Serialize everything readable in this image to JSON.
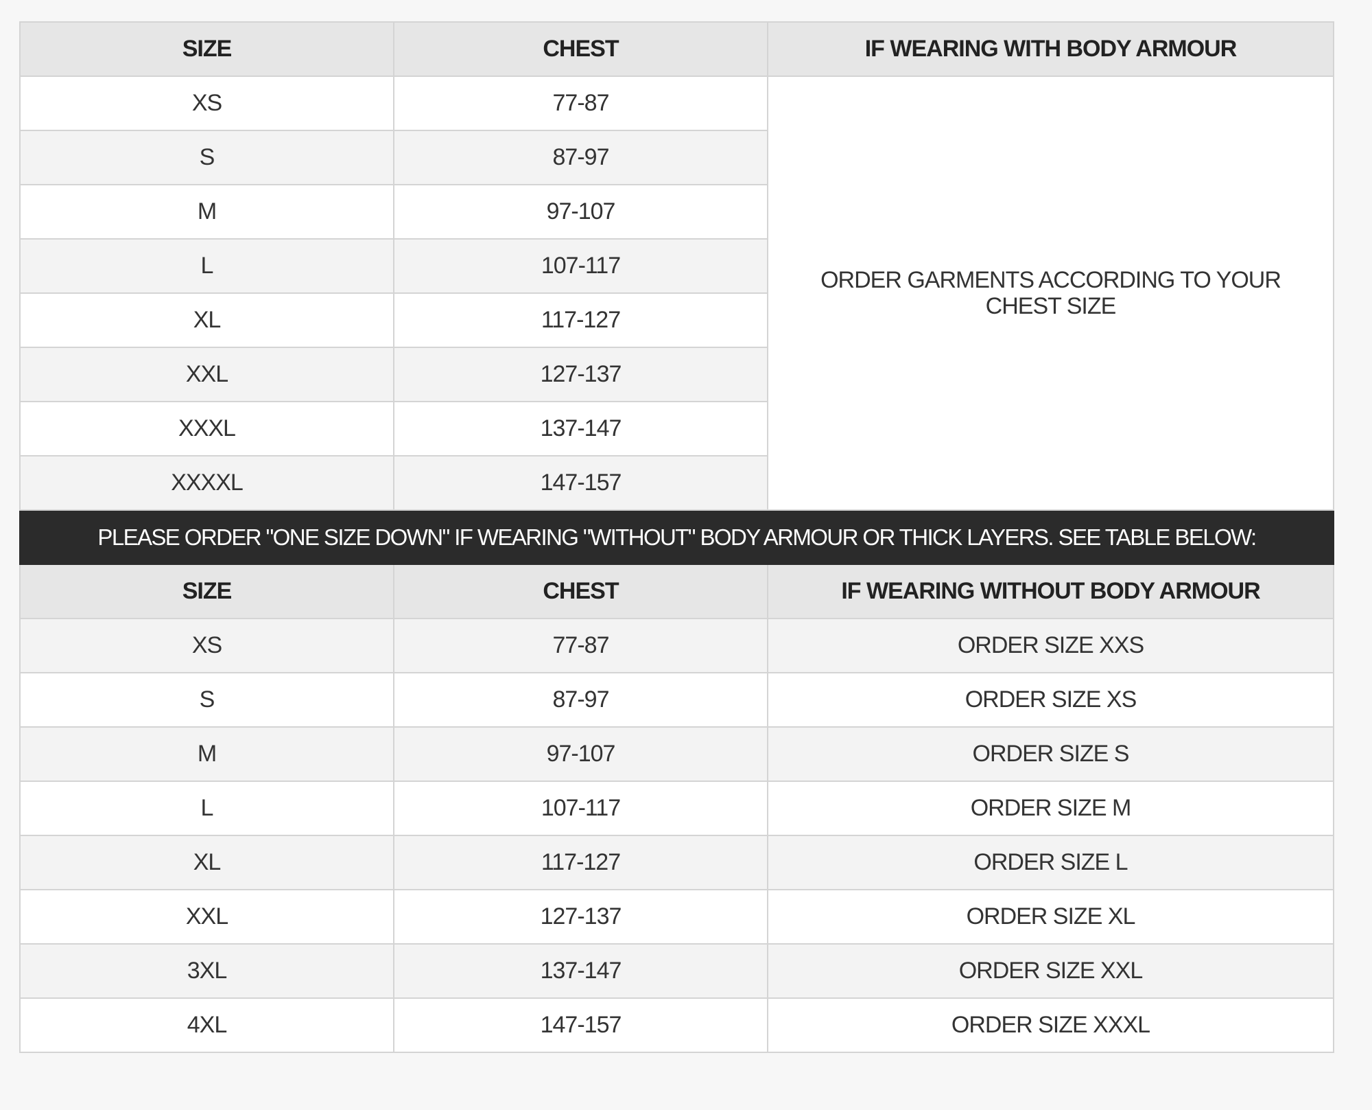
{
  "table1": {
    "headers": [
      "SIZE",
      "CHEST",
      "IF WEARING WITH BODY ARMOUR"
    ],
    "note": "ORDER GARMENTS ACCORDING TO YOUR CHEST SIZE",
    "rows": [
      {
        "size": "XS",
        "chest": "77-87"
      },
      {
        "size": "S",
        "chest": "87-97"
      },
      {
        "size": "M",
        "chest": "97-107"
      },
      {
        "size": "L",
        "chest": "107-117"
      },
      {
        "size": "XL",
        "chest": "117-127"
      },
      {
        "size": "XXL",
        "chest": "127-137"
      },
      {
        "size": "XXXL",
        "chest": "137-147"
      },
      {
        "size": "XXXXL",
        "chest": "147-157"
      }
    ]
  },
  "banner": "PLEASE ORDER \"ONE SIZE DOWN\" IF WEARING \"WITHOUT\" BODY ARMOUR OR THICK LAYERS. SEE TABLE BELOW:",
  "table2": {
    "headers": [
      "SIZE",
      "CHEST",
      "IF WEARING WITHOUT BODY ARMOUR"
    ],
    "rows": [
      {
        "size": "XS",
        "chest": "77-87",
        "order": "ORDER SIZE XXS"
      },
      {
        "size": "S",
        "chest": "87-97",
        "order": "ORDER SIZE XS"
      },
      {
        "size": "M",
        "chest": "97-107",
        "order": "ORDER SIZE S"
      },
      {
        "size": "L",
        "chest": "107-117",
        "order": "ORDER SIZE M"
      },
      {
        "size": "XL",
        "chest": "117-127",
        "order": "ORDER SIZE L"
      },
      {
        "size": "XXL",
        "chest": "127-137",
        "order": "ORDER SIZE XL"
      },
      {
        "size": "3XL",
        "chest": "137-147",
        "order": "ORDER SIZE XXL"
      },
      {
        "size": "4XL",
        "chest": "147-157",
        "order": "ORDER SIZE XXXL"
      }
    ]
  }
}
